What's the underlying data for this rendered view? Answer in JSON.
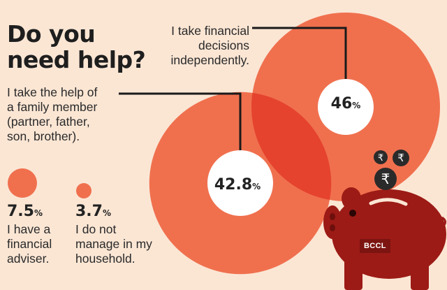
{
  "title_line1": "Do you",
  "title_line2": "need help?",
  "watermark": "BCCL",
  "currency_icon": "rupee-icon",
  "colors": {
    "background": "#fbe6d4",
    "bubble": "#f0704e",
    "overlap": "#e5432e",
    "piggy_bank": "#9c1b16",
    "label_circle": "#ffffff"
  },
  "chart_data": {
    "type": "bubble",
    "title": "Do you need help?",
    "series": [
      {
        "value": 46,
        "unit": "%",
        "display": "46",
        "label": "I take financial decisions independently."
      },
      {
        "value": 42.8,
        "unit": "%",
        "display": "42.8",
        "label": "I take the help of a family member (partner, father, son, brother)."
      },
      {
        "value": 7.5,
        "unit": "%",
        "display": "7.5",
        "label": "I have a financial adviser."
      },
      {
        "value": 3.7,
        "unit": "%",
        "display": "3.7",
        "label": "I do not manage in my household."
      }
    ],
    "labels": {
      "independent": [
        "I take financial",
        "decisions",
        "independently."
      ],
      "family": [
        "I take the help of",
        "a family member",
        "(partner, father,",
        "son, brother)."
      ],
      "adviser": [
        "I have a",
        "financial",
        "adviser."
      ],
      "not_manage": [
        "I do not",
        "manage in my",
        "household."
      ]
    }
  }
}
